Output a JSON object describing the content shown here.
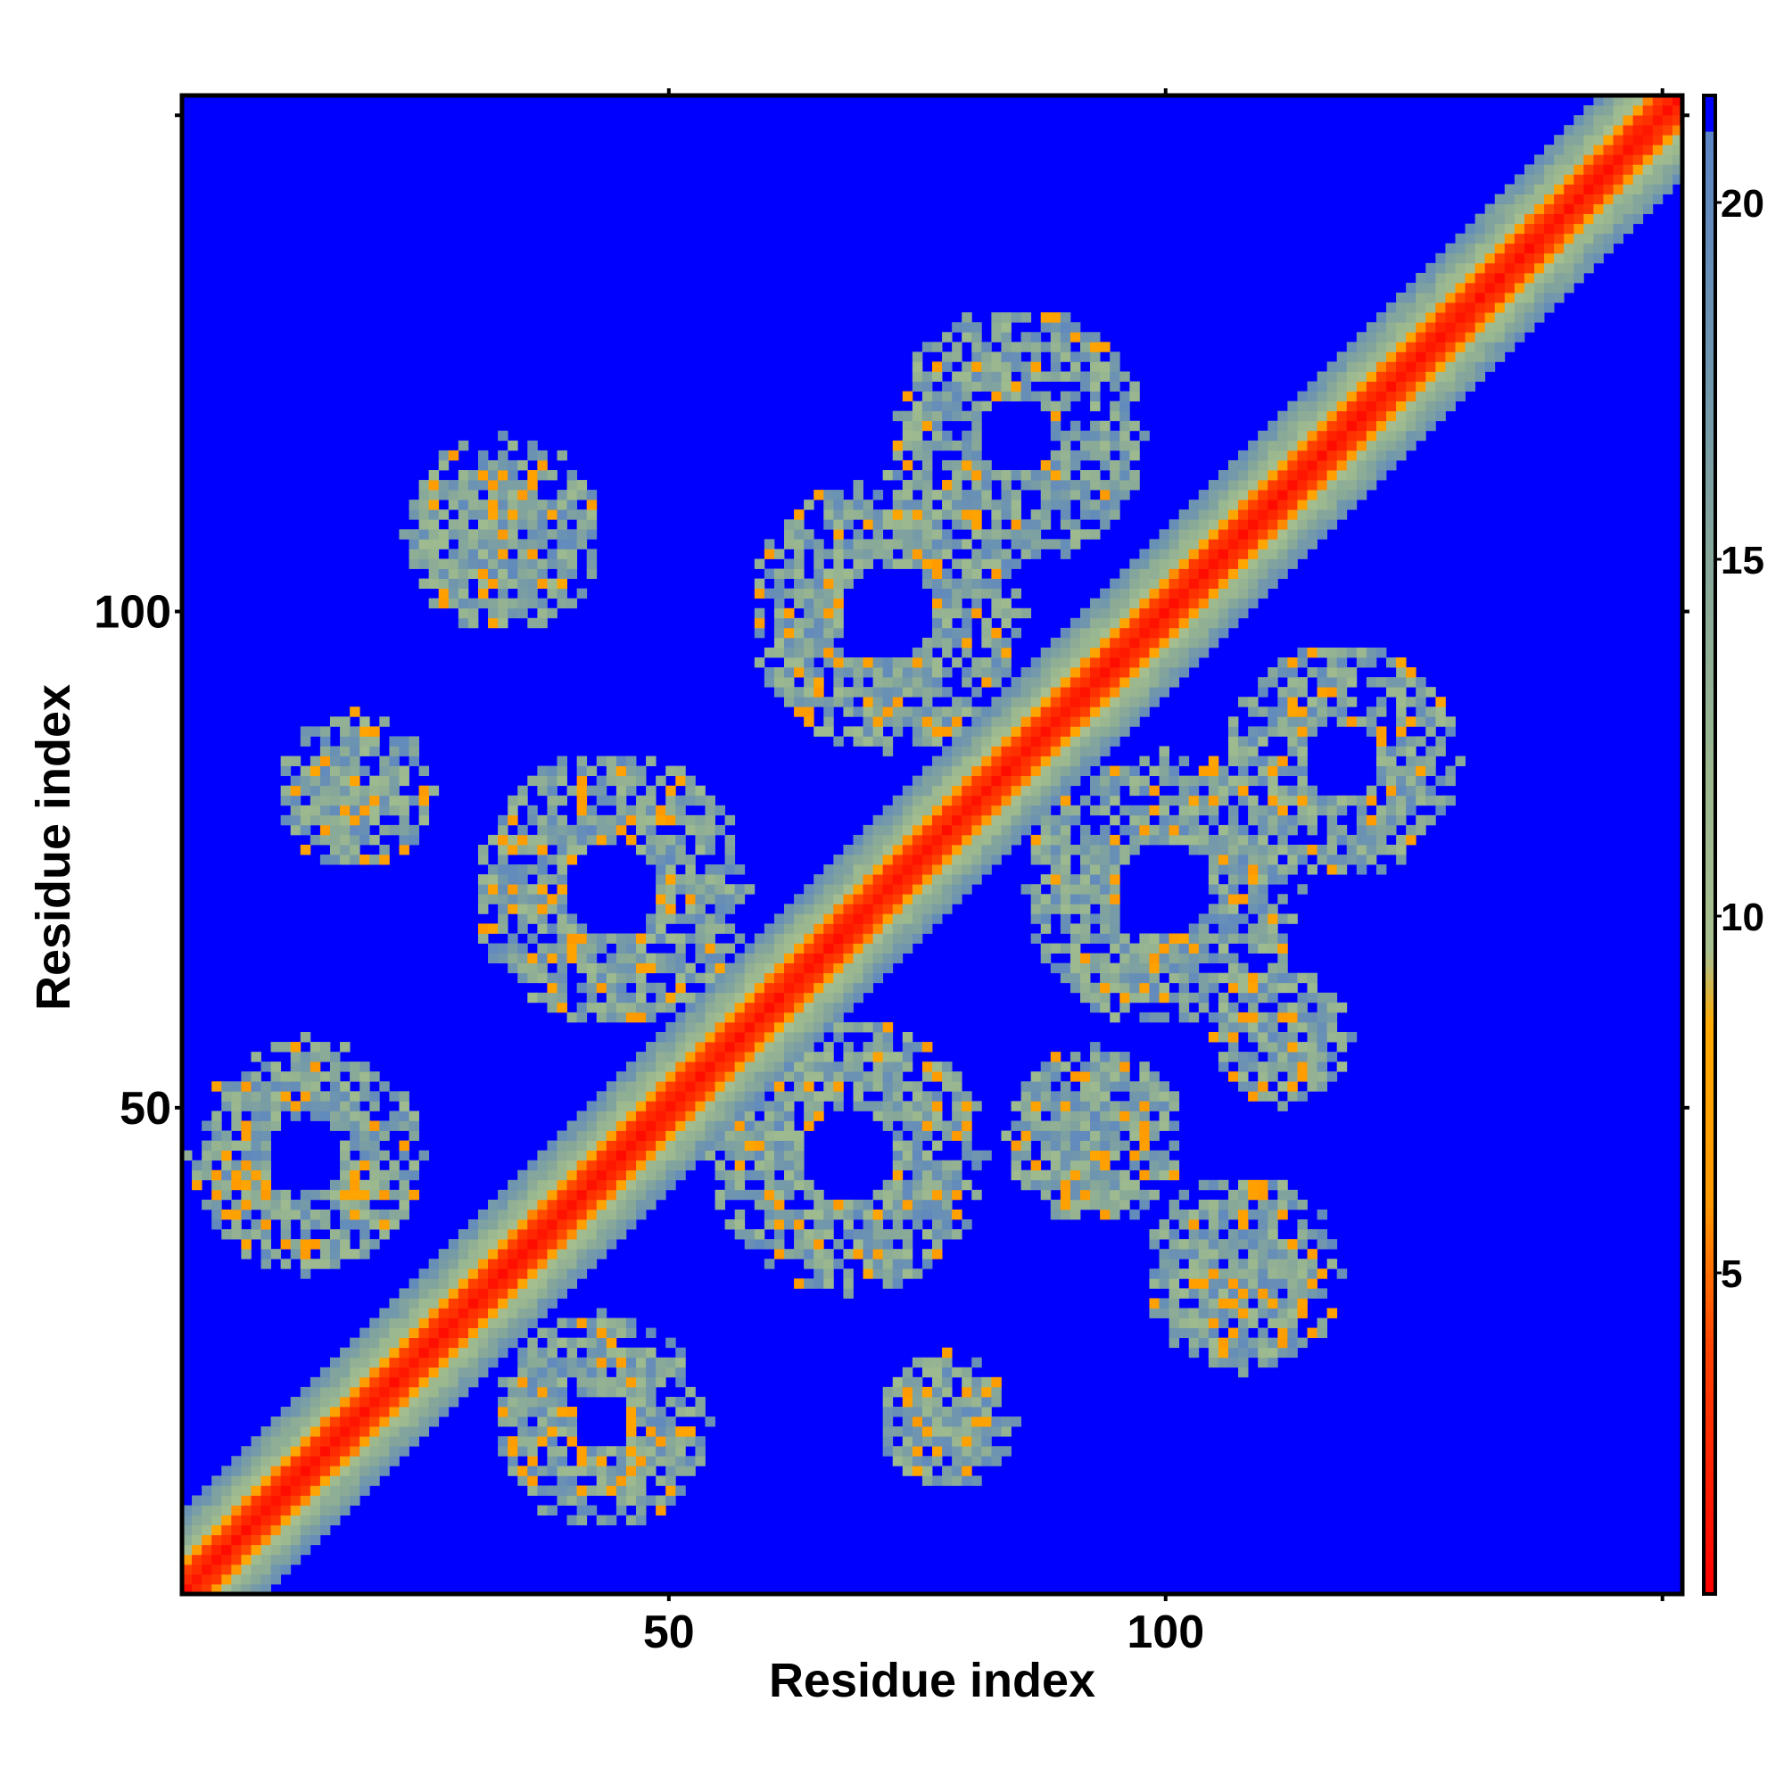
{
  "chart_data": {
    "type": "heatmap",
    "title": "",
    "xlabel": "Residue index",
    "ylabel": "Residue index",
    "n_residues": 152,
    "xlim": [
      1,
      152
    ],
    "ylim": [
      1,
      152
    ],
    "xticks": [
      50,
      100
    ],
    "yticks": [
      50,
      100
    ],
    "colorbar": {
      "range": [
        0.5,
        21.5
      ],
      "ticks": [
        5,
        10,
        15,
        20
      ],
      "threshold": 21,
      "above_threshold_color": "#0000ff",
      "stops": [
        {
          "value": 0.5,
          "color": "#ff0000"
        },
        {
          "value": 4.0,
          "color": "#ff4400"
        },
        {
          "value": 6.0,
          "color": "#ff9900"
        },
        {
          "value": 8.5,
          "color": "#ffaa00"
        },
        {
          "value": 9.5,
          "color": "#a8c090"
        },
        {
          "value": 12.0,
          "color": "#9bb88f"
        },
        {
          "value": 15.0,
          "color": "#86a79a"
        },
        {
          "value": 18.0,
          "color": "#6d94b0"
        },
        {
          "value": 21.0,
          "color": "#5b84c4"
        }
      ]
    },
    "diagonal_band": {
      "core_halfwidth": 2,
      "orange_halfwidth": 3,
      "band_halfwidth": 8
    },
    "clusters": [
      {
        "center": [
          13,
          45
        ],
        "radius": 12,
        "hole": 4
      },
      {
        "center": [
          43,
          18
        ],
        "radius": 11,
        "hole": 3
      },
      {
        "center": [
          44,
          72
        ],
        "radius": 14,
        "hole": 5
      },
      {
        "center": [
          68,
          45
        ],
        "radius": 14,
        "hole": 5
      },
      {
        "center": [
          72,
          100
        ],
        "radius": 14,
        "hole": 5
      },
      {
        "center": [
          100,
          72
        ],
        "radius": 14,
        "hole": 5
      },
      {
        "center": [
          85,
          118
        ],
        "radius": 13,
        "hole": 4
      },
      {
        "center": [
          118,
          85
        ],
        "radius": 12,
        "hole": 4
      },
      {
        "center": [
          33,
          108
        ],
        "radius": 10,
        "hole": 0
      },
      {
        "center": [
          108,
          33
        ],
        "radius": 10,
        "hole": 0
      },
      {
        "center": [
          18,
          82
        ],
        "radius": 8,
        "hole": 0
      },
      {
        "center": [
          78,
          18
        ],
        "radius": 7,
        "hole": 0
      },
      {
        "center": [
          112,
          57
        ],
        "radius": 7,
        "hole": 0
      },
      {
        "center": [
          93,
          47
        ],
        "radius": 9,
        "hole": 0
      }
    ]
  }
}
